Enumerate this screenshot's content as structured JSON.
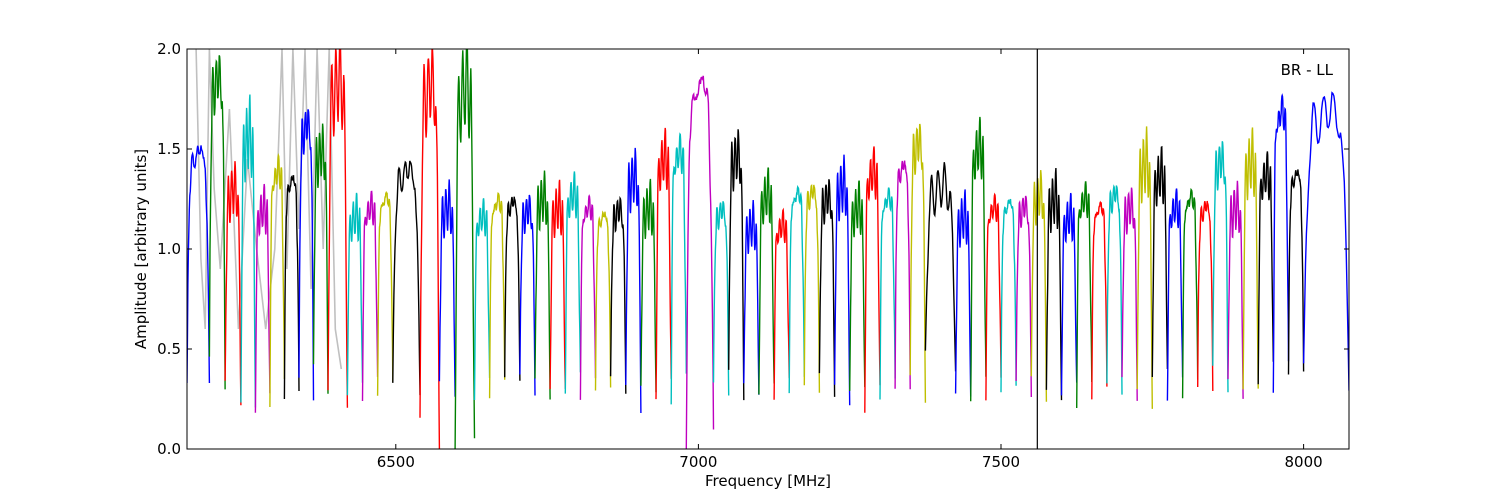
{
  "chart_data": {
    "type": "line",
    "title": "",
    "annotation": "BR - LL",
    "xlabel": "Frequency [MHz]",
    "ylabel": "Amplitude [arbitrary units]",
    "xlim": [
      6155,
      8075
    ],
    "ylim": [
      0.0,
      2.0
    ],
    "xticks": [
      6500,
      7000,
      7500,
      8000
    ],
    "xtick_labels": [
      "6500",
      "7000",
      "7500",
      "8000"
    ],
    "yticks": [
      0.0,
      0.5,
      1.0,
      1.5,
      2.0
    ],
    "ytick_labels": [
      "0.0",
      "0.5",
      "1.0",
      "1.5",
      "2.0"
    ],
    "grid": false,
    "legend": "none",
    "vertical_line_x": 7560,
    "background_series_color": "#c0c0c0",
    "background_series": [
      [
        6170,
        2.0
      ],
      [
        6178,
        0.95
      ],
      [
        6185,
        0.6
      ],
      [
        6192,
        2.0
      ],
      [
        6200,
        1.3
      ],
      [
        6210,
        0.9
      ],
      [
        6225,
        1.7
      ],
      [
        6240,
        0.6
      ],
      [
        6255,
        1.45
      ],
      [
        6270,
        1.0
      ],
      [
        6285,
        0.6
      ],
      [
        6300,
        1.0
      ],
      [
        6312,
        2.0
      ],
      [
        6320,
        0.9
      ],
      [
        6330,
        2.0
      ],
      [
        6340,
        1.1
      ],
      [
        6350,
        2.0
      ],
      [
        6360,
        0.8
      ],
      [
        6370,
        2.0
      ],
      [
        6380,
        1.0
      ],
      [
        6390,
        2.0
      ],
      [
        6400,
        0.6
      ],
      [
        6410,
        0.4
      ]
    ],
    "channel_shape": [
      [
        0.0,
        0.3
      ],
      [
        0.05,
        0.7
      ],
      [
        0.12,
        1.05
      ],
      [
        0.2,
        1.22
      ],
      [
        0.3,
        1.1
      ],
      [
        0.4,
        1.25
      ],
      [
        0.52,
        1.15
      ],
      [
        0.62,
        1.3
      ],
      [
        0.72,
        1.12
      ],
      [
        0.82,
        1.2
      ],
      [
        0.9,
        0.9
      ],
      [
        0.97,
        0.5
      ],
      [
        1.0,
        0.3
      ]
    ],
    "series": [
      {
        "color": "#0000ff",
        "start": 6155,
        "end": 6192,
        "peak": 1.6,
        "dip": 0.33
      },
      {
        "color": "#008000",
        "start": 6192,
        "end": 6218,
        "peak": 2.0,
        "dip": 0.38
      },
      {
        "color": "#ff0000",
        "start": 6218,
        "end": 6244,
        "peak": 1.4,
        "dip": 0.28
      },
      {
        "color": "#00bfbf",
        "start": 6244,
        "end": 6268,
        "peak": 1.7,
        "dip": 0.22
      },
      {
        "color": "#bf00bf",
        "start": 6268,
        "end": 6292,
        "peak": 1.3,
        "dip": 0.23
      },
      {
        "color": "#bfbf00",
        "start": 6292,
        "end": 6316,
        "peak": 1.5,
        "dip": 0.28
      },
      {
        "color": "#000000",
        "start": 6316,
        "end": 6340,
        "peak": 1.45,
        "dip": 0.27
      },
      {
        "color": "#0000ff",
        "start": 6340,
        "end": 6364,
        "peak": 1.75,
        "dip": 0.3
      },
      {
        "color": "#008000",
        "start": 6364,
        "end": 6388,
        "peak": 1.6,
        "dip": 0.35
      },
      {
        "color": "#ff0000",
        "start": 6388,
        "end": 6420,
        "peak": 2.0,
        "dip": 0.25
      },
      {
        "color": "#00bfbf",
        "start": 6420,
        "end": 6445,
        "peak": 1.25,
        "dip": 0.3
      },
      {
        "color": "#bf00bf",
        "start": 6445,
        "end": 6470,
        "peak": 1.3,
        "dip": 0.3
      },
      {
        "color": "#bfbf00",
        "start": 6470,
        "end": 6495,
        "peak": 1.35,
        "dip": 0.3
      },
      {
        "color": "#000000",
        "start": 6495,
        "end": 6540,
        "peak": 1.5,
        "dip": 0.3
      },
      {
        "color": "#ff0000",
        "start": 6540,
        "end": 6572,
        "peak": 2.0,
        "dip": 0.04
      },
      {
        "color": "#0000ff",
        "start": 6572,
        "end": 6598,
        "peak": 1.3,
        "dip": 0.3
      },
      {
        "color": "#008000",
        "start": 6598,
        "end": 6630,
        "peak": 2.0,
        "dip": 0.02
      },
      {
        "color": "#00bfbf",
        "start": 6630,
        "end": 6655,
        "peak": 1.25,
        "dip": 0.3
      },
      {
        "color": "#bfbf00",
        "start": 6655,
        "end": 6680,
        "peak": 1.33,
        "dip": 0.3
      },
      {
        "color": "#000000",
        "start": 6680,
        "end": 6705,
        "peak": 1.32,
        "dip": 0.35
      },
      {
        "color": "#0000ff",
        "start": 6705,
        "end": 6730,
        "peak": 1.28,
        "dip": 0.32
      },
      {
        "color": "#008000",
        "start": 6730,
        "end": 6755,
        "peak": 1.35,
        "dip": 0.3
      },
      {
        "color": "#ff0000",
        "start": 6755,
        "end": 6780,
        "peak": 1.3,
        "dip": 0.3
      },
      {
        "color": "#00bfbf",
        "start": 6780,
        "end": 6805,
        "peak": 1.37,
        "dip": 0.33
      },
      {
        "color": "#bf00bf",
        "start": 6805,
        "end": 6830,
        "peak": 1.3,
        "dip": 0.3
      },
      {
        "color": "#bfbf00",
        "start": 6830,
        "end": 6855,
        "peak": 1.25,
        "dip": 0.3
      },
      {
        "color": "#000000",
        "start": 6855,
        "end": 6880,
        "peak": 1.28,
        "dip": 0.32
      },
      {
        "color": "#0000ff",
        "start": 6880,
        "end": 6905,
        "peak": 1.47,
        "dip": 0.25
      },
      {
        "color": "#008000",
        "start": 6905,
        "end": 6930,
        "peak": 1.3,
        "dip": 0.3
      },
      {
        "color": "#ff0000",
        "start": 6930,
        "end": 6955,
        "peak": 1.57,
        "dip": 0.3
      },
      {
        "color": "#00bfbf",
        "start": 6955,
        "end": 6980,
        "peak": 1.6,
        "dip": 0.3
      },
      {
        "color": "#bf00bf",
        "start": 6980,
        "end": 7025,
        "peak": 2.0,
        "dip": 0.05
      },
      {
        "color": "#00bfbf",
        "start": 7025,
        "end": 7050,
        "peak": 1.28,
        "dip": 0.3
      },
      {
        "color": "#000000",
        "start": 7050,
        "end": 7075,
        "peak": 1.58,
        "dip": 0.32
      },
      {
        "color": "#0000ff",
        "start": 7075,
        "end": 7100,
        "peak": 1.2,
        "dip": 0.3
      },
      {
        "color": "#008000",
        "start": 7100,
        "end": 7125,
        "peak": 1.37,
        "dip": 0.3
      },
      {
        "color": "#ff0000",
        "start": 7125,
        "end": 7150,
        "peak": 1.2,
        "dip": 0.3
      },
      {
        "color": "#00bfbf",
        "start": 7150,
        "end": 7175,
        "peak": 1.37,
        "dip": 0.32
      },
      {
        "color": "#bfbf00",
        "start": 7175,
        "end": 7200,
        "peak": 1.38,
        "dip": 0.3
      },
      {
        "color": "#000000",
        "start": 7200,
        "end": 7225,
        "peak": 1.35,
        "dip": 0.32
      },
      {
        "color": "#0000ff",
        "start": 7225,
        "end": 7250,
        "peak": 1.42,
        "dip": 0.27
      },
      {
        "color": "#008000",
        "start": 7250,
        "end": 7275,
        "peak": 1.3,
        "dip": 0.3
      },
      {
        "color": "#ff0000",
        "start": 7275,
        "end": 7300,
        "peak": 1.5,
        "dip": 0.25
      },
      {
        "color": "#00bfbf",
        "start": 7300,
        "end": 7325,
        "peak": 1.35,
        "dip": 0.3
      },
      {
        "color": "#bf00bf",
        "start": 7325,
        "end": 7350,
        "peak": 1.52,
        "dip": 0.3
      },
      {
        "color": "#bfbf00",
        "start": 7350,
        "end": 7375,
        "peak": 1.65,
        "dip": 0.3
      },
      {
        "color": "#000000",
        "start": 7375,
        "end": 7425,
        "peak": 1.4,
        "dip": 0.44
      },
      {
        "color": "#0000ff",
        "start": 7425,
        "end": 7450,
        "peak": 1.25,
        "dip": 0.27
      },
      {
        "color": "#008000",
        "start": 7450,
        "end": 7475,
        "peak": 1.63,
        "dip": 0.3
      },
      {
        "color": "#ff0000",
        "start": 7475,
        "end": 7500,
        "peak": 1.3,
        "dip": 0.3
      },
      {
        "color": "#00bfbf",
        "start": 7500,
        "end": 7525,
        "peak": 1.32,
        "dip": 0.3
      },
      {
        "color": "#bf00bf",
        "start": 7525,
        "end": 7550,
        "peak": 1.3,
        "dip": 0.3
      },
      {
        "color": "#bfbf00",
        "start": 7550,
        "end": 7575,
        "peak": 1.37,
        "dip": 0.3
      },
      {
        "color": "#000000",
        "start": 7575,
        "end": 7600,
        "peak": 1.35,
        "dip": 0.27
      },
      {
        "color": "#0000ff",
        "start": 7600,
        "end": 7625,
        "peak": 1.25,
        "dip": 0.3
      },
      {
        "color": "#008000",
        "start": 7625,
        "end": 7650,
        "peak": 1.35,
        "dip": 0.27
      },
      {
        "color": "#ff0000",
        "start": 7650,
        "end": 7675,
        "peak": 1.3,
        "dip": 0.28
      },
      {
        "color": "#00bfbf",
        "start": 7675,
        "end": 7700,
        "peak": 1.37,
        "dip": 0.3
      },
      {
        "color": "#bf00bf",
        "start": 7700,
        "end": 7725,
        "peak": 1.3,
        "dip": 0.3
      },
      {
        "color": "#bfbf00",
        "start": 7725,
        "end": 7750,
        "peak": 1.55,
        "dip": 0.25
      },
      {
        "color": "#000000",
        "start": 7750,
        "end": 7775,
        "peak": 1.47,
        "dip": 0.38
      },
      {
        "color": "#0000ff",
        "start": 7775,
        "end": 7800,
        "peak": 1.3,
        "dip": 0.3
      },
      {
        "color": "#008000",
        "start": 7800,
        "end": 7825,
        "peak": 1.35,
        "dip": 0.3
      },
      {
        "color": "#ff0000",
        "start": 7825,
        "end": 7850,
        "peak": 1.3,
        "dip": 0.3
      },
      {
        "color": "#00bfbf",
        "start": 7850,
        "end": 7875,
        "peak": 1.55,
        "dip": 0.35
      },
      {
        "color": "#bf00bf",
        "start": 7875,
        "end": 7900,
        "peak": 1.3,
        "dip": 0.3
      },
      {
        "color": "#bfbf00",
        "start": 7900,
        "end": 7925,
        "peak": 1.55,
        "dip": 0.3
      },
      {
        "color": "#000000",
        "start": 7925,
        "end": 7950,
        "peak": 1.47,
        "dip": 0.38
      },
      {
        "color": "#0000ff",
        "start": 7950,
        "end": 7975,
        "peak": 1.82,
        "dip": 0.36
      },
      {
        "color": "#000000",
        "start": 7975,
        "end": 8000,
        "peak": 1.47,
        "dip": 0.38
      },
      {
        "color": "#0000ff",
        "start": 8000,
        "end": 8075,
        "peak": 1.82,
        "dip": 0.36
      }
    ]
  }
}
